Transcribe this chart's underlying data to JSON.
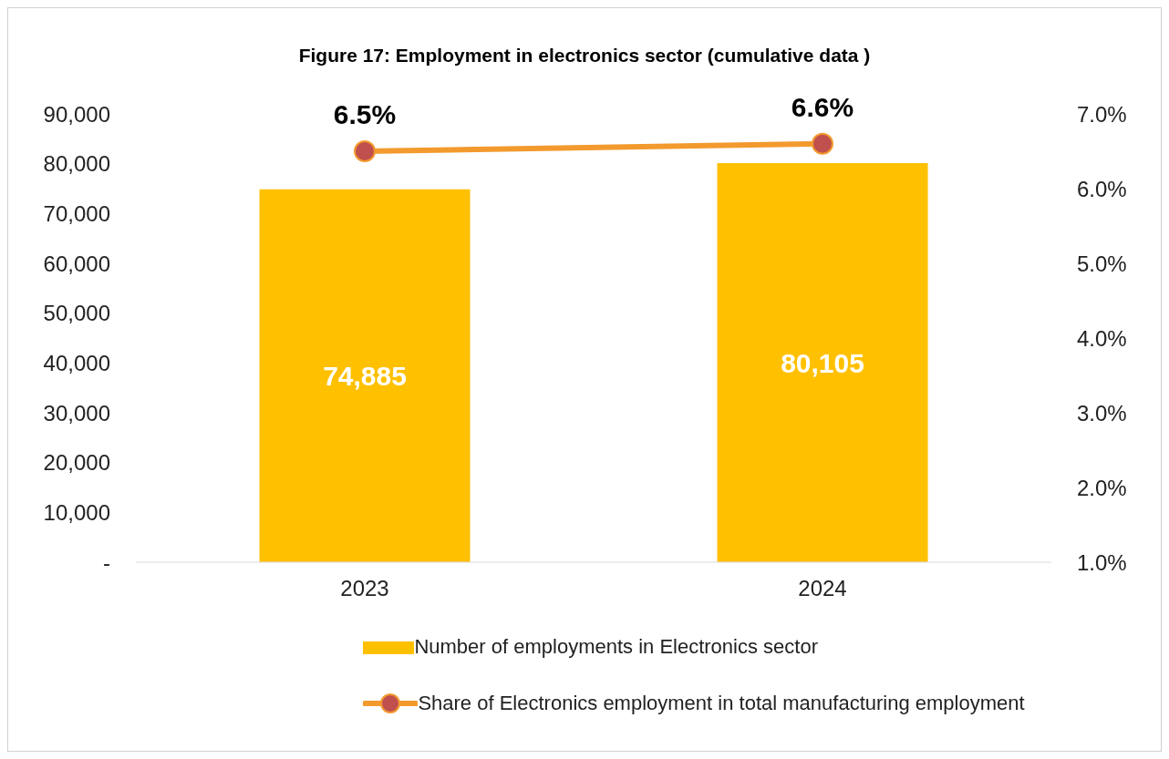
{
  "chart_data": {
    "type": "bar",
    "title": "Figure 17: Employment in electronics sector (cumulative data )",
    "categories": [
      "2023",
      "2024"
    ],
    "series": [
      {
        "name": "Number of employments in Electronics sector",
        "color": "#ffc000",
        "values": [
          74885,
          80105
        ],
        "value_labels": [
          "74,885",
          "80,105"
        ]
      },
      {
        "name": "Share of Electronics employment in total manufacturing employment",
        "type": "line",
        "axis": "y2",
        "color": "#f39a2e",
        "values": [
          6.5,
          6.6
        ],
        "value_labels": [
          "6.5%",
          "6.6%"
        ]
      }
    ],
    "ylim": [
      0,
      90000
    ],
    "yticks": [
      {
        "value": 0,
        "label": "-"
      },
      {
        "value": 10000,
        "label": "10,000"
      },
      {
        "value": 20000,
        "label": "20,000"
      },
      {
        "value": 30000,
        "label": "30,000"
      },
      {
        "value": 40000,
        "label": "40,000"
      },
      {
        "value": 50000,
        "label": "50,000"
      },
      {
        "value": 60000,
        "label": "60,000"
      },
      {
        "value": 70000,
        "label": "70,000"
      },
      {
        "value": 80000,
        "label": "80,000"
      },
      {
        "value": 90000,
        "label": "90,000"
      }
    ],
    "y2lim": [
      1,
      7
    ],
    "y2ticks": [
      {
        "value": 1,
        "label": "1.0%"
      },
      {
        "value": 2,
        "label": "2.0%"
      },
      {
        "value": 3,
        "label": "3.0%"
      },
      {
        "value": 4,
        "label": "4.0%"
      },
      {
        "value": 5,
        "label": "5.0%"
      },
      {
        "value": 6,
        "label": "6.0%"
      },
      {
        "value": 7,
        "label": "7.0%"
      }
    ],
    "marker": "circle",
    "line_style": "solid",
    "legend": "bottom",
    "grid": false
  }
}
